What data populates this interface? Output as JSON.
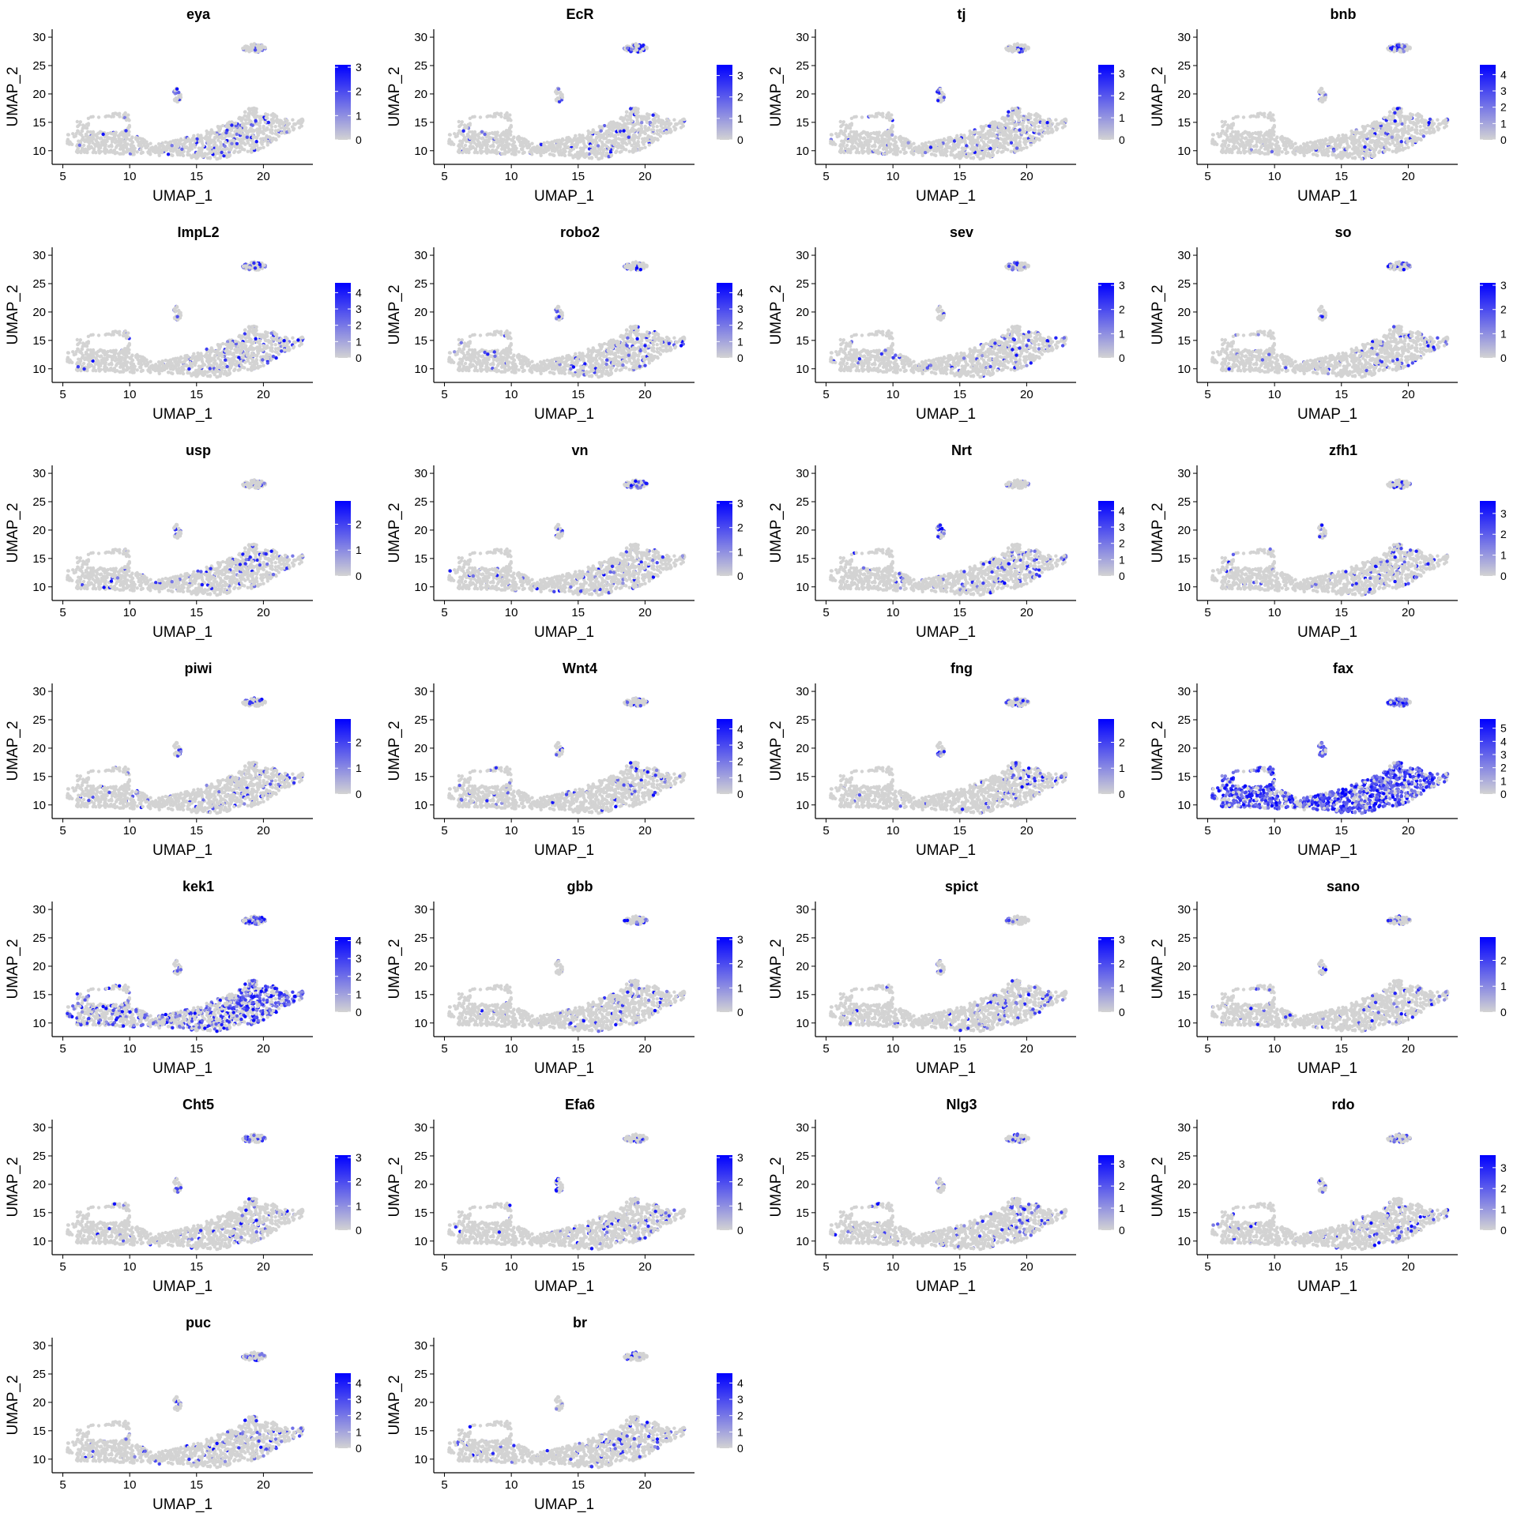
{
  "figure": {
    "colors": {
      "low": "#d3d3d3",
      "high": "#0000ff",
      "point": "#d3d3d3"
    }
  },
  "chart_data": [
    {
      "type": "scatter",
      "title": "eya",
      "xlabel": "UMAP_1",
      "ylabel": "UMAP_2",
      "xticks": [
        5,
        10,
        15,
        20
      ],
      "yticks": [
        10,
        15,
        20,
        25,
        30
      ],
      "xlim": [
        4.2,
        23.7
      ],
      "ylim": [
        7.6,
        31.4
      ],
      "legend": {
        "ticks": [
          0,
          1,
          2,
          3
        ],
        "max": 3.1
      }
    },
    {
      "type": "scatter",
      "title": "EcR",
      "xlabel": "UMAP_1",
      "ylabel": "UMAP_2",
      "xticks": [
        5,
        10,
        15,
        20
      ],
      "yticks": [
        10,
        15,
        20,
        25,
        30
      ],
      "xlim": [
        4.2,
        23.7
      ],
      "ylim": [
        7.6,
        31.4
      ],
      "legend": {
        "ticks": [
          0,
          1,
          2,
          3
        ],
        "max": 3.5
      }
    },
    {
      "type": "scatter",
      "title": "tj",
      "xlabel": "UMAP_1",
      "ylabel": "UMAP_2",
      "xticks": [
        5,
        10,
        15,
        20
      ],
      "yticks": [
        10,
        15,
        20,
        25,
        30
      ],
      "xlim": [
        4.2,
        23.7
      ],
      "ylim": [
        7.6,
        31.4
      ],
      "legend": {
        "ticks": [
          0,
          1,
          2,
          3
        ],
        "max": 3.4
      }
    },
    {
      "type": "scatter",
      "title": "bnb",
      "xlabel": "UMAP_1",
      "ylabel": "UMAP_2",
      "xticks": [
        5,
        10,
        15,
        20
      ],
      "yticks": [
        10,
        15,
        20,
        25,
        30
      ],
      "xlim": [
        4.2,
        23.7
      ],
      "ylim": [
        7.6,
        31.4
      ],
      "legend": {
        "ticks": [
          0,
          1,
          2,
          3,
          4
        ],
        "max": 4.6
      }
    },
    {
      "type": "scatter",
      "title": "ImpL2",
      "xlabel": "UMAP_1",
      "ylabel": "UMAP_2",
      "xticks": [
        5,
        10,
        15,
        20
      ],
      "yticks": [
        10,
        15,
        20,
        25,
        30
      ],
      "xlim": [
        4.2,
        23.7
      ],
      "ylim": [
        7.6,
        31.4
      ],
      "legend": {
        "ticks": [
          0,
          1,
          2,
          3,
          4
        ],
        "max": 4.6
      }
    },
    {
      "type": "scatter",
      "title": "robo2",
      "xlabel": "UMAP_1",
      "ylabel": "UMAP_2",
      "xticks": [
        5,
        10,
        15,
        20
      ],
      "yticks": [
        10,
        15,
        20,
        25,
        30
      ],
      "xlim": [
        4.2,
        23.7
      ],
      "ylim": [
        7.6,
        31.4
      ],
      "legend": {
        "ticks": [
          0,
          1,
          2,
          3,
          4
        ],
        "max": 4.6
      }
    },
    {
      "type": "scatter",
      "title": "sev",
      "xlabel": "UMAP_1",
      "ylabel": "UMAP_2",
      "xticks": [
        5,
        10,
        15,
        20
      ],
      "yticks": [
        10,
        15,
        20,
        25,
        30
      ],
      "xlim": [
        4.2,
        23.7
      ],
      "ylim": [
        7.6,
        31.4
      ],
      "legend": {
        "ticks": [
          0,
          1,
          2,
          3
        ],
        "max": 3.1
      }
    },
    {
      "type": "scatter",
      "title": "so",
      "xlabel": "UMAP_1",
      "ylabel": "UMAP_2",
      "xticks": [
        5,
        10,
        15,
        20
      ],
      "yticks": [
        10,
        15,
        20,
        25,
        30
      ],
      "xlim": [
        4.2,
        23.7
      ],
      "ylim": [
        7.6,
        31.4
      ],
      "legend": {
        "ticks": [
          0,
          1,
          2,
          3
        ],
        "max": 3.1
      }
    },
    {
      "type": "scatter",
      "title": "usp",
      "xlabel": "UMAP_1",
      "ylabel": "UMAP_2",
      "xticks": [
        5,
        10,
        15,
        20
      ],
      "yticks": [
        10,
        15,
        20,
        25,
        30
      ],
      "xlim": [
        4.2,
        23.7
      ],
      "ylim": [
        7.6,
        31.4
      ],
      "legend": {
        "ticks": [
          0,
          1,
          2
        ],
        "max": 2.9
      }
    },
    {
      "type": "scatter",
      "title": "vn",
      "xlabel": "UMAP_1",
      "ylabel": "UMAP_2",
      "xticks": [
        5,
        10,
        15,
        20
      ],
      "yticks": [
        10,
        15,
        20,
        25,
        30
      ],
      "xlim": [
        4.2,
        23.7
      ],
      "ylim": [
        7.6,
        31.4
      ],
      "legend": {
        "ticks": [
          0,
          1,
          2,
          3
        ],
        "max": 3.1
      }
    },
    {
      "type": "scatter",
      "title": "Nrt",
      "xlabel": "UMAP_1",
      "ylabel": "UMAP_2",
      "xticks": [
        5,
        10,
        15,
        20
      ],
      "yticks": [
        10,
        15,
        20,
        25,
        30
      ],
      "xlim": [
        4.2,
        23.7
      ],
      "ylim": [
        7.6,
        31.4
      ],
      "legend": {
        "ticks": [
          0,
          1,
          2,
          3,
          4
        ],
        "max": 4.6
      }
    },
    {
      "type": "scatter",
      "title": "zfh1",
      "xlabel": "UMAP_1",
      "ylabel": "UMAP_2",
      "xticks": [
        5,
        10,
        15,
        20
      ],
      "yticks": [
        10,
        15,
        20,
        25,
        30
      ],
      "xlim": [
        4.2,
        23.7
      ],
      "ylim": [
        7.6,
        31.4
      ],
      "legend": {
        "ticks": [
          0,
          1,
          2,
          3
        ],
        "max": 3.6
      }
    },
    {
      "type": "scatter",
      "title": "piwi",
      "xlabel": "UMAP_1",
      "ylabel": "UMAP_2",
      "xticks": [
        5,
        10,
        15,
        20
      ],
      "yticks": [
        10,
        15,
        20,
        25,
        30
      ],
      "xlim": [
        4.2,
        23.7
      ],
      "ylim": [
        7.6,
        31.4
      ],
      "legend": {
        "ticks": [
          0,
          1,
          2
        ],
        "max": 2.9
      }
    },
    {
      "type": "scatter",
      "title": "Wnt4",
      "xlabel": "UMAP_1",
      "ylabel": "UMAP_2",
      "xticks": [
        5,
        10,
        15,
        20
      ],
      "yticks": [
        10,
        15,
        20,
        25,
        30
      ],
      "xlim": [
        4.2,
        23.7
      ],
      "ylim": [
        7.6,
        31.4
      ],
      "legend": {
        "ticks": [
          0,
          1,
          2,
          3,
          4
        ],
        "max": 4.6
      }
    },
    {
      "type": "scatter",
      "title": "fng",
      "xlabel": "UMAP_1",
      "ylabel": "UMAP_2",
      "xticks": [
        5,
        10,
        15,
        20
      ],
      "yticks": [
        10,
        15,
        20,
        25,
        30
      ],
      "xlim": [
        4.2,
        23.7
      ],
      "ylim": [
        7.6,
        31.4
      ],
      "legend": {
        "ticks": [
          0,
          1,
          2
        ],
        "max": 2.9
      }
    },
    {
      "type": "scatter",
      "title": "fax",
      "xlabel": "UMAP_1",
      "ylabel": "UMAP_2",
      "xticks": [
        5,
        10,
        15,
        20
      ],
      "yticks": [
        10,
        15,
        20,
        25,
        30
      ],
      "xlim": [
        4.2,
        23.7
      ],
      "ylim": [
        7.6,
        31.4
      ],
      "legend": {
        "ticks": [
          0,
          1,
          2,
          3,
          4,
          5
        ],
        "max": 5.7
      }
    },
    {
      "type": "scatter",
      "title": "kek1",
      "xlabel": "UMAP_1",
      "ylabel": "UMAP_2",
      "xticks": [
        5,
        10,
        15,
        20
      ],
      "yticks": [
        10,
        15,
        20,
        25,
        30
      ],
      "xlim": [
        4.2,
        23.7
      ],
      "ylim": [
        7.6,
        31.4
      ],
      "legend": {
        "ticks": [
          0,
          1,
          2,
          3,
          4
        ],
        "max": 4.2
      }
    },
    {
      "type": "scatter",
      "title": "gbb",
      "xlabel": "UMAP_1",
      "ylabel": "UMAP_2",
      "xticks": [
        5,
        10,
        15,
        20
      ],
      "yticks": [
        10,
        15,
        20,
        25,
        30
      ],
      "xlim": [
        4.2,
        23.7
      ],
      "ylim": [
        7.6,
        31.4
      ],
      "legend": {
        "ticks": [
          0,
          1,
          2,
          3
        ],
        "max": 3.1
      }
    },
    {
      "type": "scatter",
      "title": "spict",
      "xlabel": "UMAP_1",
      "ylabel": "UMAP_2",
      "xticks": [
        5,
        10,
        15,
        20
      ],
      "yticks": [
        10,
        15,
        20,
        25,
        30
      ],
      "xlim": [
        4.2,
        23.7
      ],
      "ylim": [
        7.6,
        31.4
      ],
      "legend": {
        "ticks": [
          0,
          1,
          2,
          3
        ],
        "max": 3.1
      }
    },
    {
      "type": "scatter",
      "title": "sano",
      "xlabel": "UMAP_1",
      "ylabel": "UMAP_2",
      "xticks": [
        5,
        10,
        15,
        20
      ],
      "yticks": [
        10,
        15,
        20,
        25,
        30
      ],
      "xlim": [
        4.2,
        23.7
      ],
      "ylim": [
        7.6,
        31.4
      ],
      "legend": {
        "ticks": [
          0,
          1,
          2
        ],
        "max": 2.9
      }
    },
    {
      "type": "scatter",
      "title": "Cht5",
      "xlabel": "UMAP_1",
      "ylabel": "UMAP_2",
      "xticks": [
        5,
        10,
        15,
        20
      ],
      "yticks": [
        10,
        15,
        20,
        25,
        30
      ],
      "xlim": [
        4.2,
        23.7
      ],
      "ylim": [
        7.6,
        31.4
      ],
      "legend": {
        "ticks": [
          0,
          1,
          2,
          3
        ],
        "max": 3.1
      }
    },
    {
      "type": "scatter",
      "title": "Efa6",
      "xlabel": "UMAP_1",
      "ylabel": "UMAP_2",
      "xticks": [
        5,
        10,
        15,
        20
      ],
      "yticks": [
        10,
        15,
        20,
        25,
        30
      ],
      "xlim": [
        4.2,
        23.7
      ],
      "ylim": [
        7.6,
        31.4
      ],
      "legend": {
        "ticks": [
          0,
          1,
          2,
          3
        ],
        "max": 3.1
      }
    },
    {
      "type": "scatter",
      "title": "Nlg3",
      "xlabel": "UMAP_1",
      "ylabel": "UMAP_2",
      "xticks": [
        5,
        10,
        15,
        20
      ],
      "yticks": [
        10,
        15,
        20,
        25,
        30
      ],
      "xlim": [
        4.2,
        23.7
      ],
      "ylim": [
        7.6,
        31.4
      ],
      "legend": {
        "ticks": [
          0,
          1,
          2,
          3
        ],
        "max": 3.4
      }
    },
    {
      "type": "scatter",
      "title": "rdo",
      "xlabel": "UMAP_1",
      "ylabel": "UMAP_2",
      "xticks": [
        5,
        10,
        15,
        20
      ],
      "yticks": [
        10,
        15,
        20,
        25,
        30
      ],
      "xlim": [
        4.2,
        23.7
      ],
      "ylim": [
        7.6,
        31.4
      ],
      "legend": {
        "ticks": [
          0,
          1,
          2,
          3
        ],
        "max": 3.6
      }
    },
    {
      "type": "scatter",
      "title": "puc",
      "xlabel": "UMAP_1",
      "ylabel": "UMAP_2",
      "xticks": [
        5,
        10,
        15,
        20
      ],
      "yticks": [
        10,
        15,
        20,
        25,
        30
      ],
      "xlim": [
        4.2,
        23.7
      ],
      "ylim": [
        7.6,
        31.4
      ],
      "legend": {
        "ticks": [
          0,
          1,
          2,
          3,
          4
        ],
        "max": 4.6
      }
    },
    {
      "type": "scatter",
      "title": "br",
      "xlabel": "UMAP_1",
      "ylabel": "UMAP_2",
      "xticks": [
        5,
        10,
        15,
        20
      ],
      "yticks": [
        10,
        15,
        20,
        25,
        30
      ],
      "xlim": [
        4.2,
        23.7
      ],
      "ylim": [
        7.6,
        31.4
      ],
      "legend": {
        "ticks": [
          0,
          1,
          2,
          3,
          4
        ],
        "max": 4.6
      }
    }
  ]
}
